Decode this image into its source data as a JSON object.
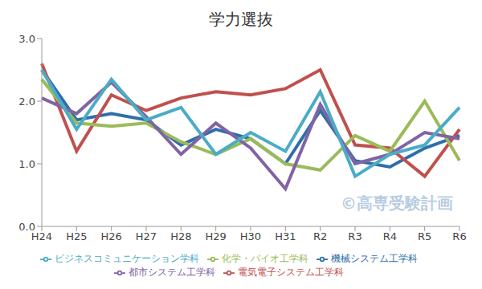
{
  "chart_data": {
    "type": "line",
    "title": "学力選抜",
    "annotations": [
      "©高専受験計画"
    ],
    "categories": [
      "H24",
      "H25",
      "H26",
      "H27",
      "H28",
      "H29",
      "H30",
      "H31",
      "R2",
      "R3",
      "R4",
      "R5",
      "R6"
    ],
    "series": [
      {
        "name": "機械システム工学科",
        "color": "#2f6eab",
        "values": [
          2.5,
          1.7,
          1.8,
          1.7,
          1.3,
          1.55,
          1.4,
          1.0,
          1.85,
          1.05,
          0.95,
          1.25,
          1.45
        ]
      },
      {
        "name": "電気電子システム工学科",
        "color": "#c0504d",
        "values": [
          2.6,
          1.2,
          2.1,
          1.85,
          2.05,
          2.15,
          2.1,
          2.2,
          2.5,
          1.3,
          1.25,
          0.8,
          1.55
        ]
      },
      {
        "name": "化学・バイオ工学科",
        "color": "#9bbb59",
        "values": [
          2.35,
          1.65,
          1.6,
          1.65,
          1.35,
          1.15,
          1.4,
          1.0,
          0.9,
          1.45,
          1.2,
          2.0,
          1.05
        ]
      },
      {
        "name": "都市システム工学科",
        "color": "#8064a2",
        "values": [
          2.05,
          1.8,
          2.3,
          1.75,
          1.15,
          1.65,
          1.25,
          0.6,
          1.95,
          1.0,
          1.15,
          1.5,
          1.4
        ]
      },
      {
        "name": "ビジネスコミュニケーション学科",
        "color": "#4bacc6",
        "values": [
          2.5,
          1.55,
          2.35,
          1.7,
          1.9,
          1.15,
          1.5,
          1.2,
          2.15,
          0.8,
          1.15,
          1.3,
          1.9
        ]
      }
    ],
    "ylim": [
      0,
      3
    ],
    "yticks": [
      {
        "value": 0,
        "label": "0.0"
      },
      {
        "value": 1,
        "label": "1.0"
      },
      {
        "value": 2,
        "label": "2.0"
      },
      {
        "value": 3,
        "label": "3.0"
      }
    ],
    "grid": false,
    "legend": "bottom"
  }
}
